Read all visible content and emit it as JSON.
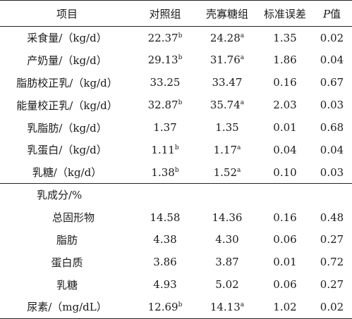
{
  "table": {
    "headers": {
      "item": "项目",
      "control": "对照组",
      "treatment": "壳寡糖组",
      "sem": "标准误差",
      "p_italic": "P",
      "p_suffix": "值"
    },
    "rows": [
      {
        "item": "采食量/（kg/d）",
        "control": "22.37",
        "control_sup": "b",
        "treatment": "24.28",
        "treatment_sup": "a",
        "sem": "1.35",
        "p": "0.02"
      },
      {
        "item": "产奶量/（kg/d）",
        "control": "29.13",
        "control_sup": "b",
        "treatment": "31.76",
        "treatment_sup": "a",
        "sem": "1.86",
        "p": "0.04"
      },
      {
        "item": "脂肪校正乳/（kg/d）",
        "control": "33.25",
        "control_sup": "",
        "treatment": "33.47",
        "treatment_sup": "",
        "sem": "0.16",
        "p": "0.67"
      },
      {
        "item": "能量校正乳/（kg/d）",
        "control": "32.87",
        "control_sup": "b",
        "treatment": "35.74",
        "treatment_sup": "a",
        "sem": "2.03",
        "p": "0.03"
      },
      {
        "item": "乳脂肪/（kg/d）",
        "control": "1.37",
        "control_sup": "",
        "treatment": "1.35",
        "treatment_sup": "",
        "sem": "0.01",
        "p": "0.68"
      },
      {
        "item": "乳蛋白/（kg/d）",
        "control": "1.11",
        "control_sup": "b",
        "treatment": "1.17",
        "treatment_sup": "a",
        "sem": "0.04",
        "p": "0.04"
      },
      {
        "item": "乳糖/（kg/d）",
        "control": "1.38",
        "control_sup": "b",
        "treatment": "1.52",
        "treatment_sup": "a",
        "sem": "0.10",
        "p": "0.03"
      }
    ],
    "section_label": "乳成分/%",
    "composition_rows": [
      {
        "item": "总固形物",
        "control": "14.58",
        "control_sup": "",
        "treatment": "14.36",
        "treatment_sup": "",
        "sem": "0.16",
        "p": "0.48"
      },
      {
        "item": "脂肪",
        "control": "4.38",
        "control_sup": "",
        "treatment": "4.30",
        "treatment_sup": "",
        "sem": "0.06",
        "p": "0.27"
      },
      {
        "item": "蛋白质",
        "control": "3.86",
        "control_sup": "",
        "treatment": "3.87",
        "treatment_sup": "",
        "sem": "0.01",
        "p": "0.72"
      },
      {
        "item": "乳糖",
        "control": "4.93",
        "control_sup": "",
        "treatment": "5.02",
        "treatment_sup": "",
        "sem": "0.06",
        "p": "0.27"
      }
    ],
    "final_row": {
      "item": "尿素/（mg/dL）",
      "control": "12.69",
      "control_sup": "b",
      "treatment": "14.13",
      "treatment_sup": "a",
      "sem": "1.02",
      "p": "0.02"
    }
  }
}
